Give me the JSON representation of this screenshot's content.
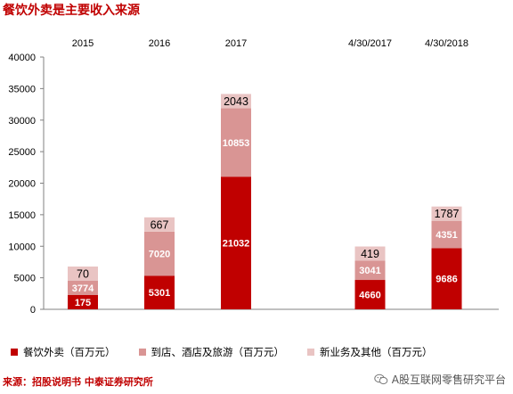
{
  "title": "餐饮外卖是主要收入来源",
  "source": "来源：招股说明书  中泰证券研究所",
  "watermark": {
    "text": "A股互联网零售研究平台",
    "icon": "wechat-icon"
  },
  "colors": {
    "series1": "#c00000",
    "series2": "#d99594",
    "series3": "#e9c4c3",
    "axis": "#808080",
    "title": "#c00000"
  },
  "chart_data": {
    "type": "bar",
    "stacked": true,
    "categories": [
      "2015",
      "2016",
      "2017",
      "4/30/2017",
      "4/30/2018"
    ],
    "category_positions": [
      0,
      1,
      2,
      3.75,
      4.75
    ],
    "series": [
      {
        "name": "餐饮外卖（百万元）",
        "values": [
          175,
          5301,
          21032,
          4660,
          9686
        ]
      },
      {
        "name": "到店、酒店及旅游（百万元）",
        "values": [
          3774,
          7020,
          10853,
          3041,
          4351
        ]
      },
      {
        "name": "新业务及其他（百万元）",
        "values": [
          70,
          667,
          2043,
          419,
          1787
        ]
      }
    ],
    "ylim": [
      0,
      40000
    ],
    "yticks": [
      0,
      5000,
      10000,
      15000,
      20000,
      25000,
      30000,
      35000,
      40000
    ],
    "category_labels_position": "top",
    "legend_position": "bottom",
    "grid": false
  }
}
